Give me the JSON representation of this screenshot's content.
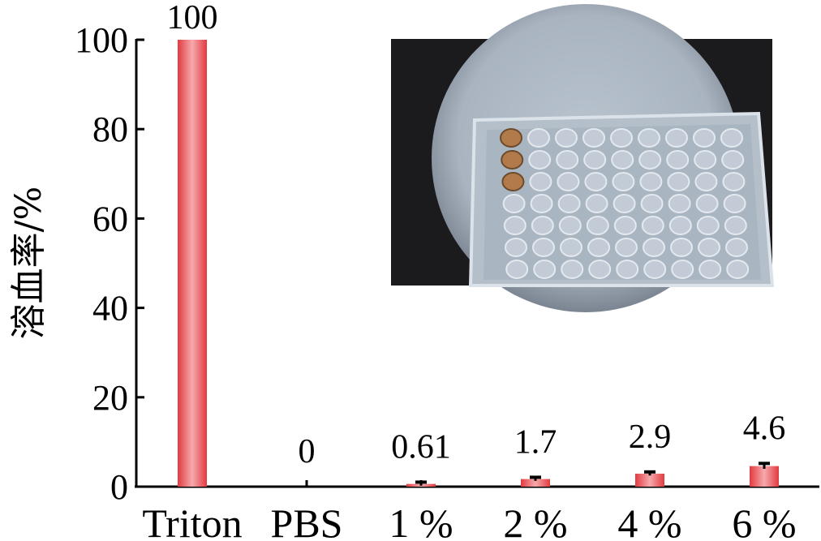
{
  "chart_data": {
    "type": "bar",
    "categories": [
      "Triton",
      "PBS",
      "1 %",
      "2 %",
      "4 %",
      "6 %"
    ],
    "values": [
      100,
      0,
      0.61,
      1.7,
      2.9,
      4.6
    ],
    "value_labels": [
      "100",
      "0",
      "0.61",
      "1.7",
      "2.9",
      "4.6"
    ],
    "errors": [
      0,
      0,
      0.4,
      0.4,
      0.4,
      0.6
    ],
    "title": "",
    "xlabel": "",
    "ylabel": "溶血率/%",
    "ylim": [
      0,
      100
    ],
    "yticks": [
      0,
      20,
      40,
      60,
      80,
      100
    ],
    "bar_color": "#e8474c",
    "bar_highlight": "#f7b2b4",
    "grid": false,
    "inset_image": "microplate-photo"
  }
}
